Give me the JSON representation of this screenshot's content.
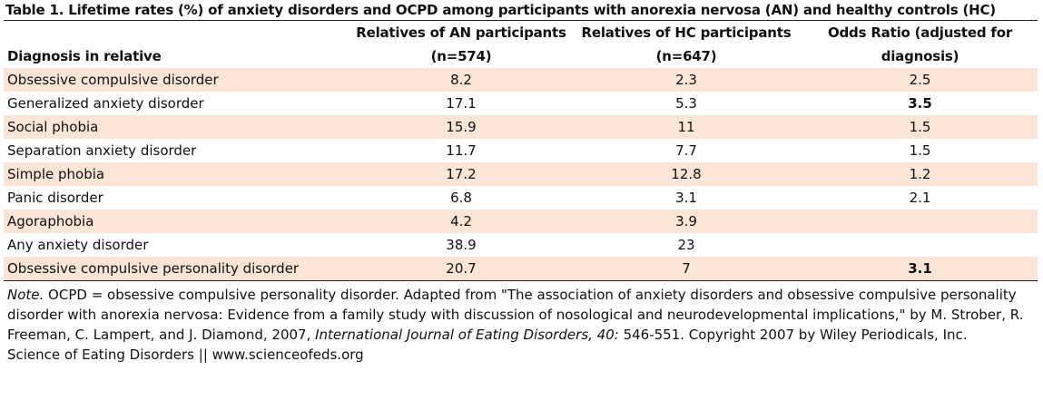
{
  "table": {
    "title": "Table 1. Lifetime rates (%) of anxiety disorders and OCPD among participants with anorexia nervosa (AN) and healthy controls (HC)",
    "columns": [
      {
        "line1": "",
        "line2": "Diagnosis in relative"
      },
      {
        "line1": "Relatives of AN participants",
        "line2": "(n=574)"
      },
      {
        "line1": "Relatives of HC participants",
        "line2": "(n=647)"
      },
      {
        "line1": "Odds Ratio (adjusted for",
        "line2": "diagnosis)"
      }
    ],
    "rows": [
      {
        "diagnosis": "Obsessive compulsive disorder",
        "an": "8.2",
        "hc": "2.3",
        "or": "2.5",
        "or_bold": false
      },
      {
        "diagnosis": "Generalized anxiety disorder",
        "an": "17.1",
        "hc": "5.3",
        "or": "3.5",
        "or_bold": true
      },
      {
        "diagnosis": "Social phobia",
        "an": "15.9",
        "hc": "11",
        "or": "1.5",
        "or_bold": false
      },
      {
        "diagnosis": "Separation anxiety disorder",
        "an": "11.7",
        "hc": "7.7",
        "or": "1.5",
        "or_bold": false
      },
      {
        "diagnosis": "Simple phobia",
        "an": "17.2",
        "hc": "12.8",
        "or": "1.2",
        "or_bold": false
      },
      {
        "diagnosis": "Panic disorder",
        "an": "6.8",
        "hc": "3.1",
        "or": "2.1",
        "or_bold": false
      },
      {
        "diagnosis": "Agoraphobia",
        "an": "4.2",
        "hc": "3.9",
        "or": "",
        "or_bold": false
      },
      {
        "diagnosis": "Any anxiety disorder",
        "an": "38.9",
        "hc": "23",
        "or": "",
        "or_bold": false
      },
      {
        "diagnosis": "Obsessive compulsive personality disorder",
        "an": "20.7",
        "hc": "7",
        "or": "3.1",
        "or_bold": true
      }
    ],
    "shade_color": "#fbe5d6"
  },
  "note": {
    "label": "Note.",
    "text1": " OCPD = obsessive compulsive personality disorder. Adapted from \"The association of anxiety disorders and obsessive compulsive personality disorder with anorexia nervosa: Evidence from a family study with discussion of nosological and neurodevelopmental implications,\" by M. Strober, R. Freeman, C. Lampert, and J. Diamond, 2007, ",
    "journal": "International Journal of Eating Disorders, 40:",
    "text2": " 546-551. Copyright 2007 by Wiley Periodicals, Inc."
  },
  "footer": "Science of Eating Disorders || www.scienceofeds.org"
}
